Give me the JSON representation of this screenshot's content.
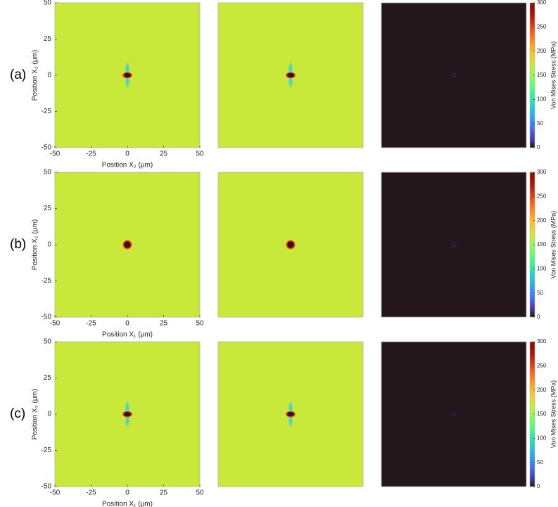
{
  "chart_data": [
    {
      "type": "heatmap",
      "row_label": "(a)",
      "xlabel": "Position X₂ (μm)",
      "ylabel": "Position X₃ (μm)",
      "xlim": [
        -50,
        50
      ],
      "ylim": [
        -50,
        50
      ],
      "xticks": [
        -50,
        -25,
        0,
        25,
        50
      ],
      "yticks": [
        -50,
        -25,
        0,
        25,
        50
      ],
      "values": [
        170,
        170,
        0
      ],
      "colormap": "turbo",
      "colorbar": {
        "label": "Von Mises Stress (MPa)",
        "lim": [
          0,
          300
        ],
        "ticks": [
          0,
          50,
          100,
          150,
          200,
          250,
          300
        ]
      }
    },
    {
      "type": "heatmap",
      "row_label": "(b)",
      "xlabel": "Position X₁ (μm)",
      "ylabel": "Position X₂ (μm)",
      "xlim": [
        -50,
        50
      ],
      "ylim": [
        -50,
        50
      ],
      "xticks": [
        -50,
        -25,
        0,
        25,
        50
      ],
      "yticks": [
        -50,
        -25,
        0,
        25,
        50
      ],
      "values": [
        170,
        170,
        0
      ],
      "colormap": "turbo",
      "colorbar": {
        "label": "Von Mises Stress (MPa)",
        "lim": [
          0,
          300
        ],
        "ticks": [
          0,
          50,
          100,
          150,
          200,
          250,
          300
        ]
      }
    },
    {
      "type": "heatmap",
      "row_label": "(c)",
      "xlabel": "Position X₁ (μm)",
      "ylabel": "Position X₃ (μm)",
      "xlim": [
        -50,
        50
      ],
      "ylim": [
        -50,
        50
      ],
      "xticks": [
        -50,
        -25,
        0,
        25,
        50
      ],
      "yticks": [
        -50,
        -25,
        0,
        25,
        50
      ],
      "values": [
        170,
        170,
        0
      ],
      "colormap": "turbo",
      "colorbar": {
        "label": "Von Mises Stress (MPa)",
        "lim": [
          0,
          300
        ],
        "ticks": [
          0,
          50,
          100,
          150,
          200,
          250,
          300
        ]
      }
    }
  ]
}
